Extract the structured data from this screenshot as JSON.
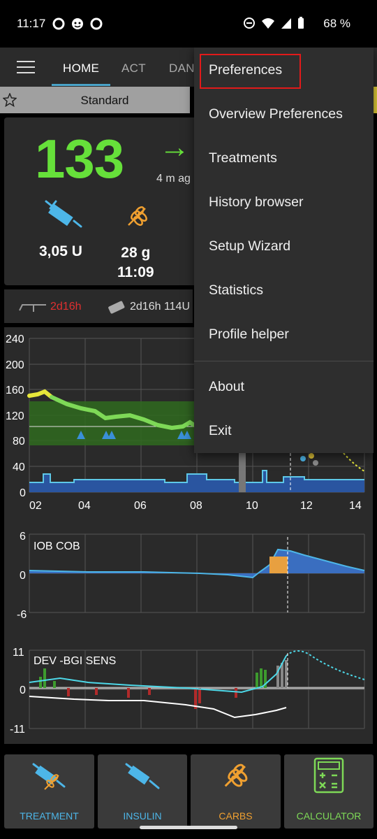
{
  "status_bar": {
    "time": "11:17",
    "battery": "68 %",
    "icons": [
      "circle-notification-icon",
      "face-notification-icon",
      "circle-notification-icon",
      "dnd-icon",
      "wifi-icon",
      "signal-icon",
      "battery-icon"
    ]
  },
  "app_bar": {
    "tabs": [
      {
        "label": "HOME",
        "active": true
      },
      {
        "label": "ACT",
        "active": false
      },
      {
        "label": "DAN",
        "active": false
      }
    ]
  },
  "profile": {
    "name": "Standard"
  },
  "overview": {
    "bg": "133",
    "trend_arrow": "→",
    "ago": "4 m ag",
    "insulin": "3,05 U",
    "carbs": "28 g",
    "carbs_time": "11:09",
    "cannula_age": "2d16h",
    "reservoir_age": "2d16h 114U"
  },
  "graphs": {
    "bg_axis": [
      "240",
      "200",
      "160",
      "120",
      "80",
      "40",
      "0"
    ],
    "time_axis": [
      "02",
      "04",
      "06",
      "08",
      "10",
      "12",
      "14"
    ],
    "iob_axis": [
      "6",
      "0",
      "-6"
    ],
    "iob_label": "IOB COB",
    "dev_axis": [
      "11",
      "0",
      "-11"
    ],
    "dev_label": "DEV -BGI SENS"
  },
  "menu": {
    "items": [
      "Preferences",
      "Overview Preferences",
      "Treatments",
      "History browser",
      "Setup Wizard",
      "Statistics",
      "Profile helper",
      "About",
      "Exit"
    ]
  },
  "buttons": [
    {
      "label": "TREATMENT",
      "color": "#4db6e8"
    },
    {
      "label": "INSULIN",
      "color": "#4db6e8"
    },
    {
      "label": "CARBS",
      "color": "#f0a030"
    },
    {
      "label": "CALCULATOR",
      "color": "#7ed957"
    }
  ],
  "colors": {
    "bg_green": "#66e03a",
    "highlight": "#e21a1a",
    "insulin_blue": "#4db6e8",
    "carbs_orange": "#f0a030"
  }
}
